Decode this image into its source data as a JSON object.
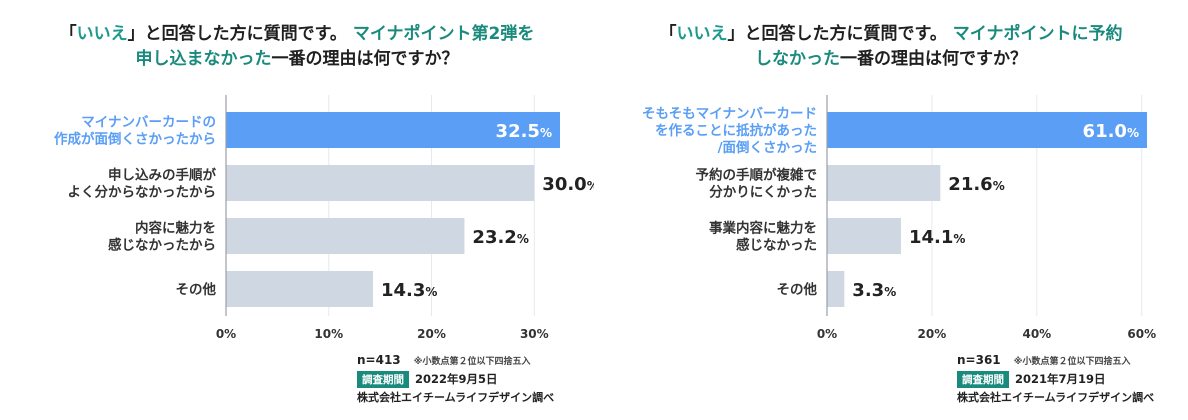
{
  "panels": [
    {
      "title": {
        "open_bracket": "「",
        "quote": "いいえ",
        "close_bracket": "」",
        "middle": "と回答した方に質問です。",
        "highlight_1": "マイナポイント第2弾を",
        "highlight_2": "申し込まなかった",
        "tail": "一番の理由は何ですか？"
      },
      "footer": {
        "n": "n=413",
        "note": "※小数点第２位以下四捨五入",
        "period_label": "調査期間",
        "date": "2022年9月5日",
        "source": "株式会社エイチームライフデザイン調べ"
      }
    },
    {
      "title": {
        "open_bracket": "「",
        "quote": "いいえ",
        "close_bracket": "」",
        "middle": "と回答した方に質問です。",
        "highlight_1": "マイナポイントに予約",
        "highlight_2": "しなかった",
        "tail": "一番の理由は何ですか？"
      },
      "footer": {
        "n": "n=361",
        "note": "※小数点第２位以下四捨五入",
        "period_label": "調査期間",
        "date": "2021年7月19日",
        "source": "株式会社エイチームライフデザイン調べ"
      }
    }
  ],
  "chart_data": [
    {
      "type": "bar",
      "orientation": "horizontal",
      "categories": [
        [
          "マイナンバーカードの",
          "作成が面倒くさかったから"
        ],
        [
          "申し込みの手順が",
          "よく分からなかったから"
        ],
        [
          "内容に魅力を",
          "感じなかったから"
        ],
        [
          "その他"
        ]
      ],
      "values": [
        32.5,
        30.0,
        23.2,
        14.3
      ],
      "value_labels": [
        "32.5",
        "30.0",
        "23.2",
        "14.3"
      ],
      "unit": "%",
      "xlim": [
        0,
        32.5
      ],
      "xticks": [
        0,
        10,
        20,
        30
      ],
      "xtick_labels": [
        "0%",
        "10%",
        "20%",
        "30%"
      ],
      "highlight_index": 0,
      "colors": {
        "highlight": "#5a9ef5",
        "bar": "#cfd7e3",
        "highlight_text": "#5a9ef5"
      }
    },
    {
      "type": "bar",
      "orientation": "horizontal",
      "categories": [
        [
          "そもそもマイナンバーカード",
          "を作ることに抵抗があった",
          "/面倒くさかった"
        ],
        [
          "予約の手順が複雑で",
          "分かりにくかった"
        ],
        [
          "事業内容に魅力を",
          "感じなかった"
        ],
        [
          "その他"
        ]
      ],
      "values": [
        61.0,
        21.6,
        14.1,
        3.3
      ],
      "value_labels": [
        "61.0",
        "21.6",
        "14.1",
        "3.3"
      ],
      "unit": "%",
      "xlim": [
        0,
        61.0
      ],
      "xticks": [
        0,
        20,
        40,
        60
      ],
      "xtick_labels": [
        "0%",
        "20%",
        "40%",
        "60%"
      ],
      "highlight_index": 0,
      "colors": {
        "highlight": "#5a9ef5",
        "bar": "#cfd7e3",
        "highlight_text": "#5a9ef5"
      }
    }
  ]
}
